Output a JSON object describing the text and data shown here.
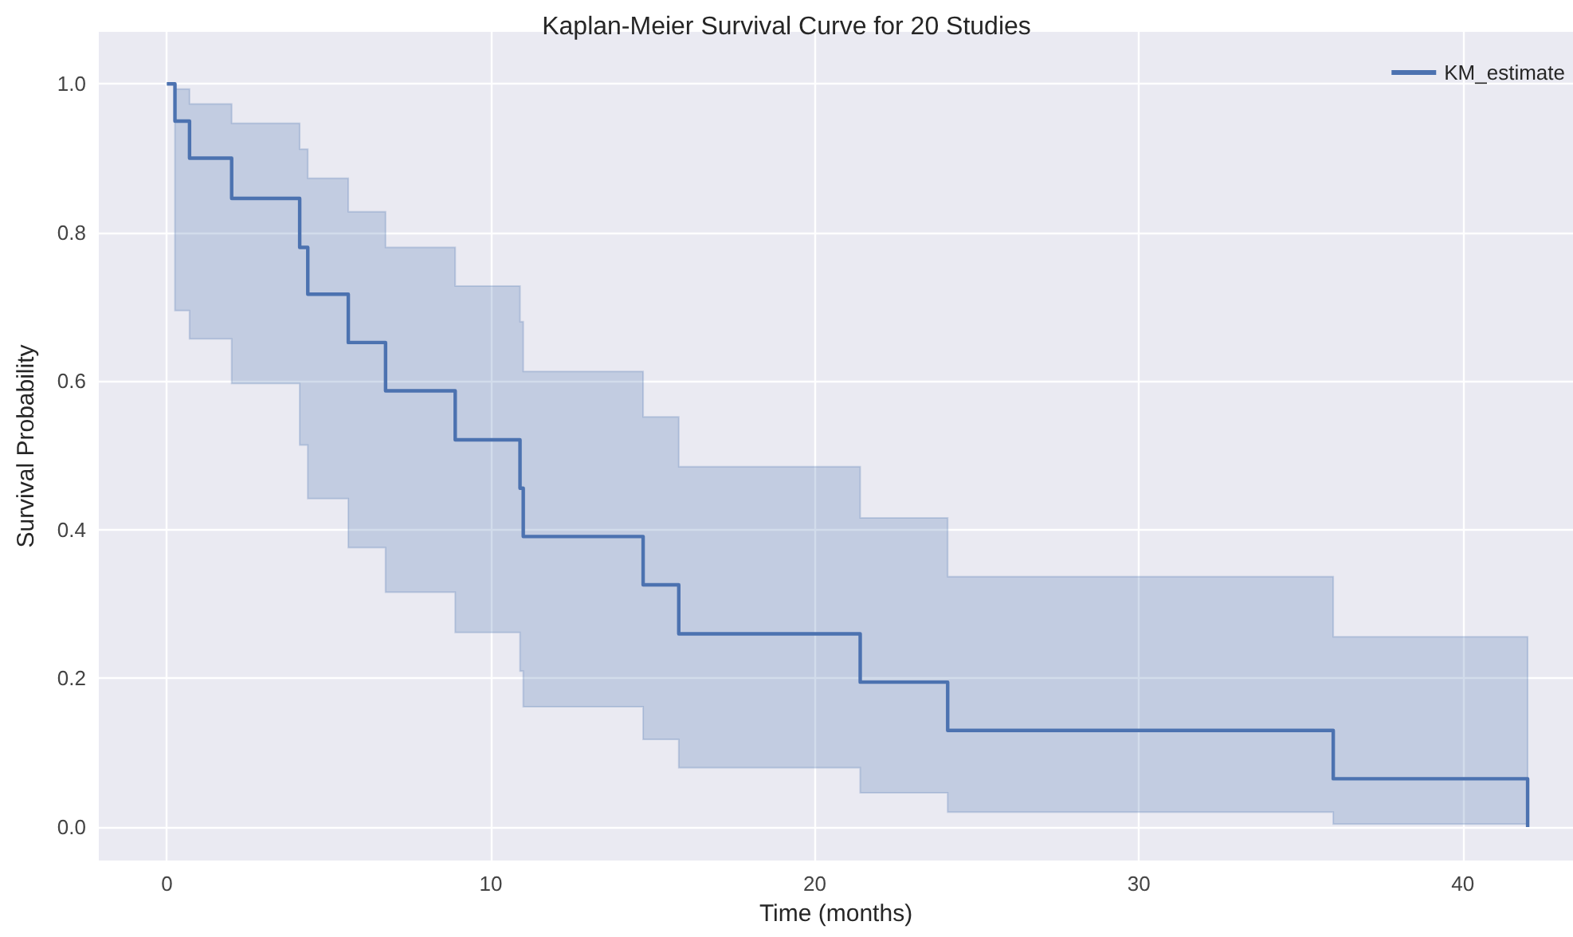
{
  "chart_data": {
    "type": "step",
    "title": "Kaplan-Meier Survival Curve for 20 Studies",
    "xlabel": "Time (months)",
    "ylabel": "Survival Probability",
    "series": [
      {
        "name": "KM_estimate",
        "color": "#4c72b0",
        "x": [
          0,
          0.25,
          0.7,
          2.0,
          4.1,
          4.35,
          5.6,
          6.75,
          8.9,
          10.9,
          11.0,
          14.7,
          15.8,
          21.4,
          24.1,
          36.0,
          42.0
        ],
        "values": [
          1.0,
          0.95,
          0.9,
          0.846,
          0.78,
          0.717,
          0.652,
          0.587,
          0.521,
          0.456,
          0.391,
          0.326,
          0.26,
          0.195,
          0.13,
          0.065,
          0.0
        ],
        "lower": [
          1.0,
          0.695,
          0.657,
          0.597,
          0.514,
          0.442,
          0.376,
          0.316,
          0.262,
          0.21,
          0.162,
          0.118,
          0.08,
          0.046,
          0.02,
          0.004,
          0.0
        ],
        "upper": [
          1.0,
          0.993,
          0.973,
          0.947,
          0.912,
          0.873,
          0.828,
          0.78,
          0.728,
          0.68,
          0.613,
          0.552,
          0.485,
          0.416,
          0.337,
          0.256,
          0.256
        ]
      }
    ],
    "xlim": [
      -2.1,
      43.4
    ],
    "xticks": [
      0,
      10,
      20,
      30,
      40
    ],
    "ylim": [
      -0.045,
      1.07
    ],
    "yticks": [
      {
        "value": 0,
        "label": "0.0"
      },
      {
        "value": 0.2,
        "label": "0.2"
      },
      {
        "value": 0.4,
        "label": "0.4"
      },
      {
        "value": 0.6,
        "label": "0.6"
      },
      {
        "value": 0.8,
        "label": "0.8"
      },
      {
        "value": 1.0,
        "label": "1.0"
      }
    ],
    "grid": true,
    "legend": "top right",
    "marker": "none",
    "line_style": "solid"
  }
}
